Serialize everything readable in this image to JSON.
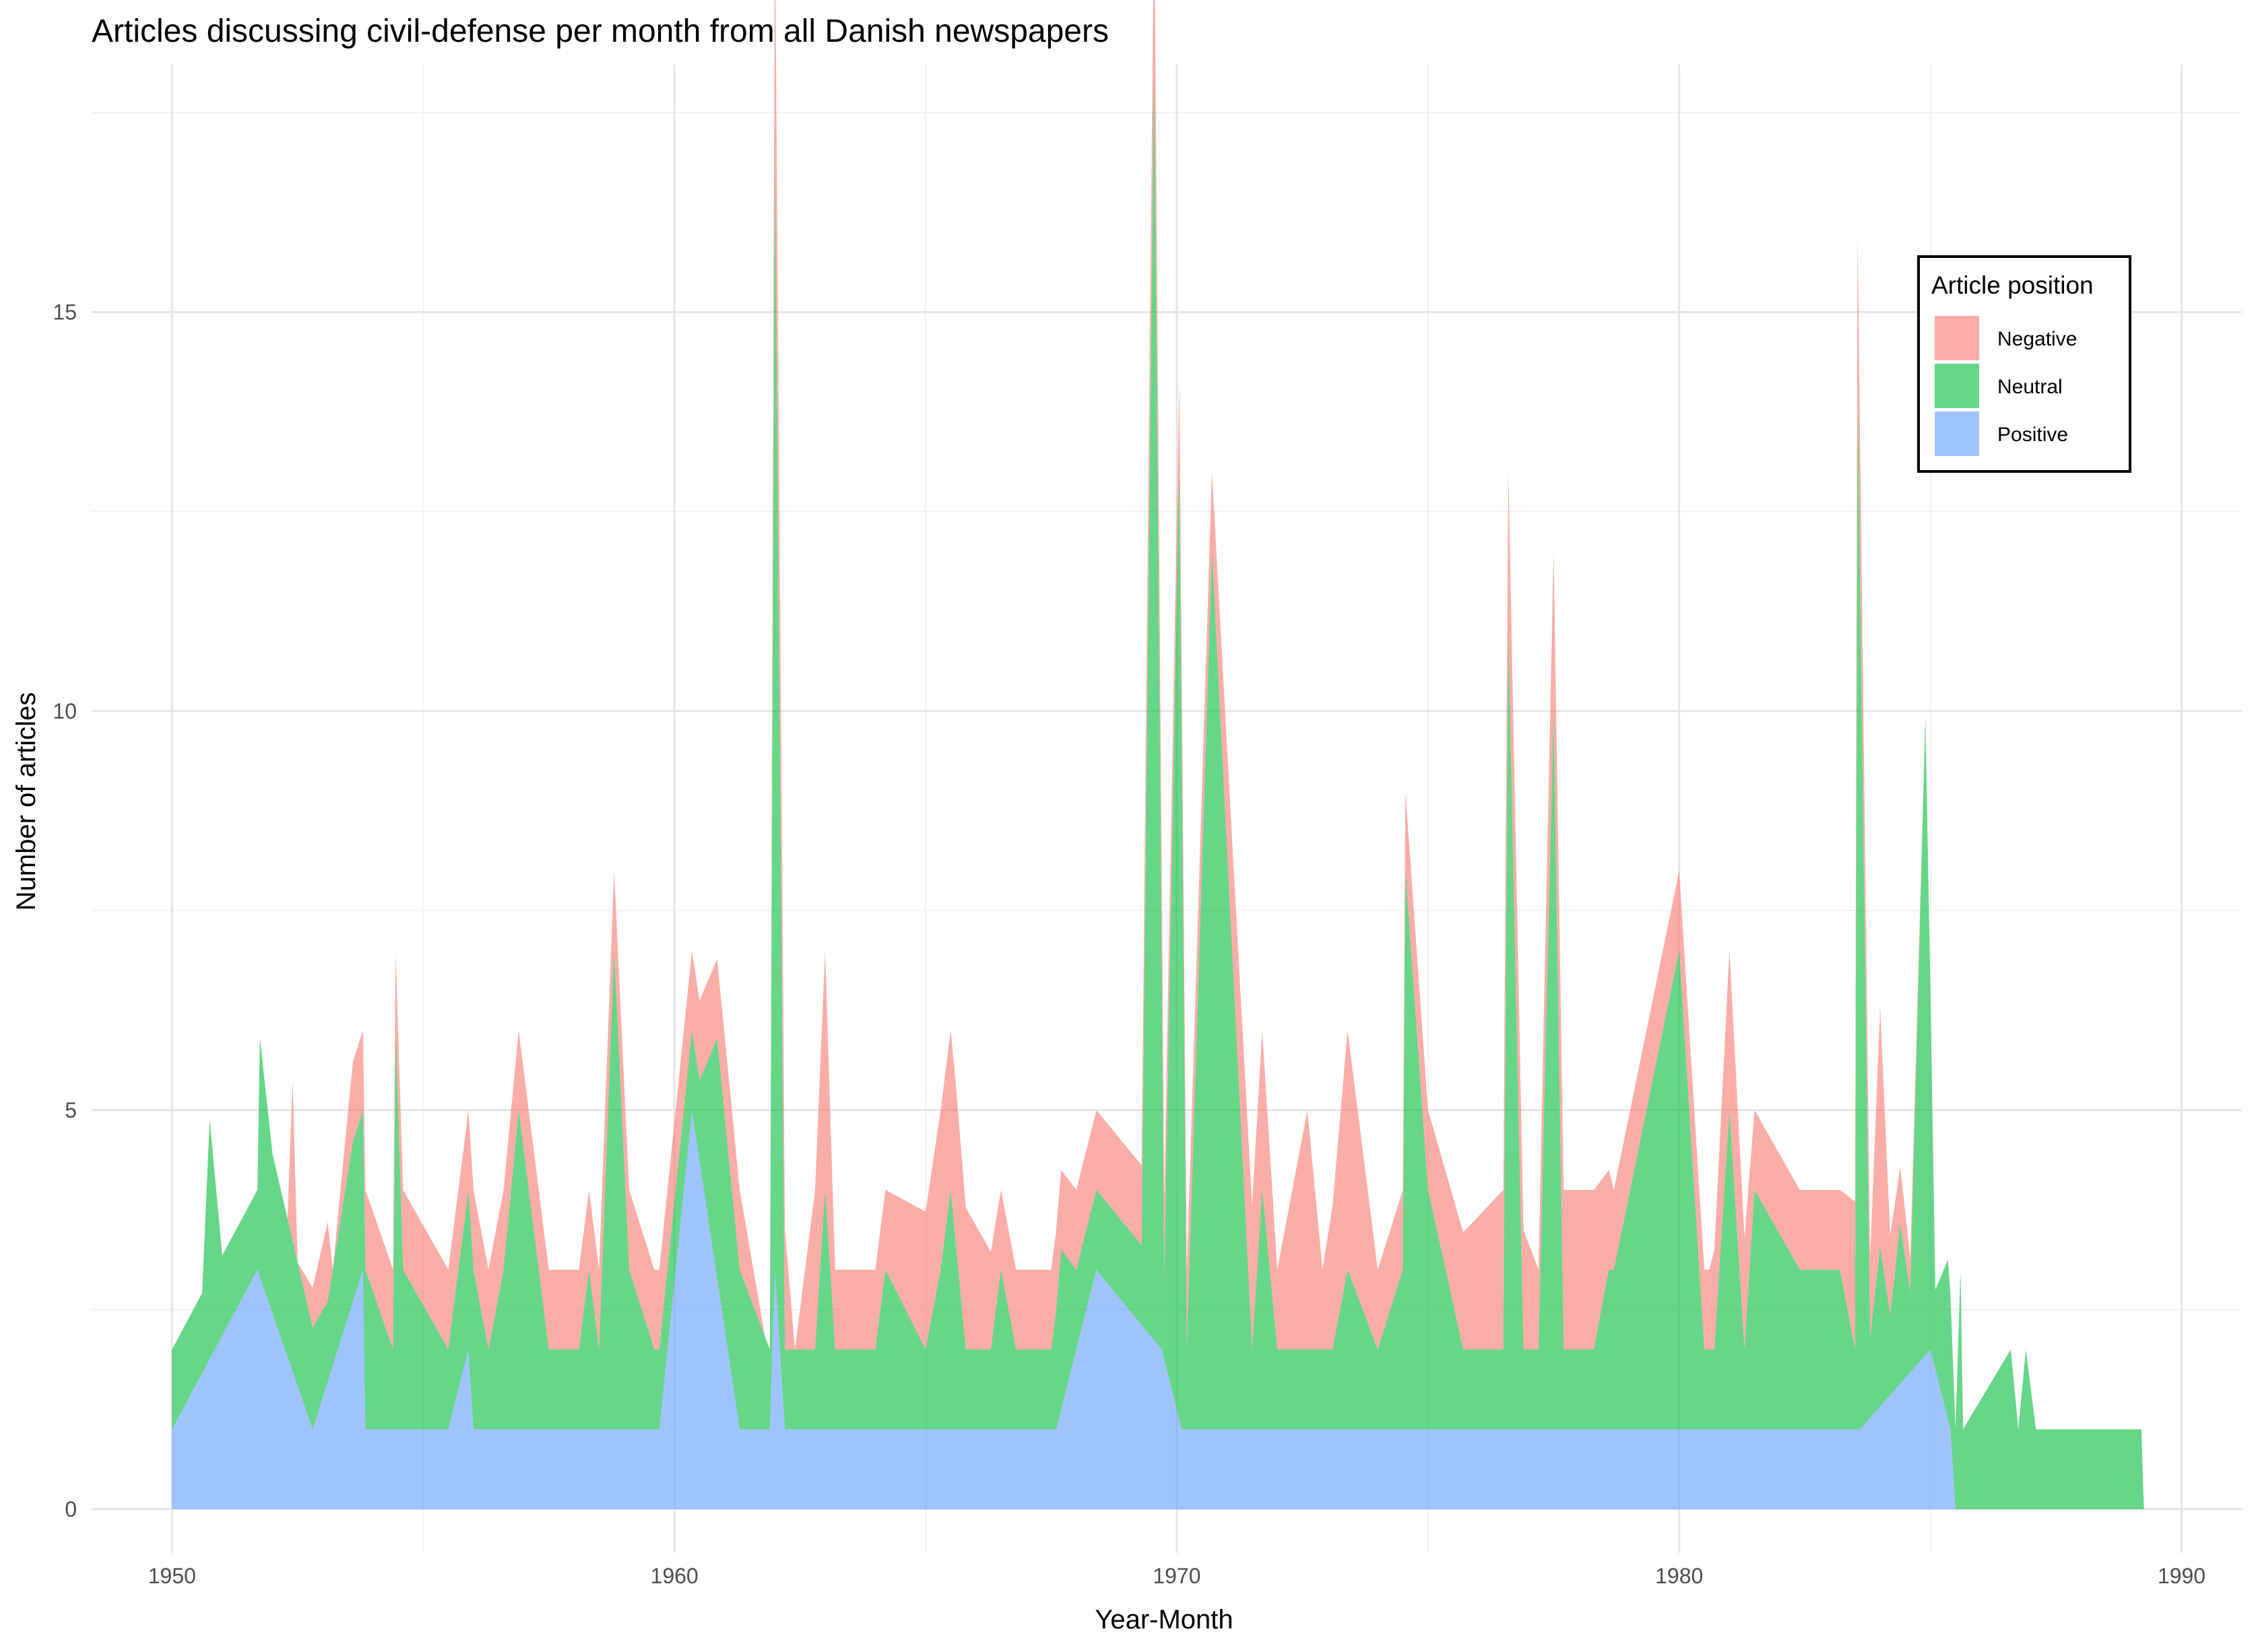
{
  "chart_data": {
    "type": "area",
    "stacked": true,
    "title": "Articles discussing civil-defense per month from all Danish newspapers",
    "xlabel": "Year-Month",
    "ylabel": "Number of articles",
    "xlim": [
      1948.4,
      1991.2
    ],
    "ylim": [
      -0.55,
      18.1
    ],
    "x_ticks": [
      1950,
      1960,
      1970,
      1980,
      1990
    ],
    "y_ticks": [
      0,
      5,
      10,
      15
    ],
    "grid": true,
    "legend": {
      "title": "Article position",
      "placement": "top-right",
      "entries": [
        "Negative",
        "Neutral",
        "Positive"
      ]
    },
    "colors": {
      "Negative": "#F8766D",
      "Neutral": "#00BA38",
      "Positive": "#619CFF"
    },
    "series": [
      {
        "name": "Positive",
        "points": [
          [
            1950.0,
            1
          ],
          [
            1951.7,
            3
          ],
          [
            1952.8,
            1
          ],
          [
            1953.8,
            3
          ],
          [
            1953.85,
            1
          ],
          [
            1955.5,
            1
          ],
          [
            1955.9,
            2
          ],
          [
            1956.0,
            1
          ],
          [
            1959.7,
            1
          ],
          [
            1960.35,
            5
          ],
          [
            1961.3,
            1
          ],
          [
            1961.9,
            1
          ],
          [
            1962.0,
            3
          ],
          [
            1962.2,
            1
          ],
          [
            1967.6,
            1
          ],
          [
            1968.4,
            3
          ],
          [
            1969.7,
            2
          ],
          [
            1970.1,
            1
          ],
          [
            1983.6,
            1
          ],
          [
            1985.0,
            2
          ],
          [
            1985.4,
            1
          ],
          [
            1985.5,
            0
          ]
        ]
      },
      {
        "name": "Neutral",
        "points": [
          [
            1950.0,
            1
          ],
          [
            1950.6,
            1
          ],
          [
            1950.75,
            3
          ],
          [
            1951.0,
            1
          ],
          [
            1951.7,
            1
          ],
          [
            1951.75,
            3
          ],
          [
            1952.0,
            2
          ],
          [
            1953.1,
            1
          ],
          [
            1953.6,
            2
          ],
          [
            1953.85,
            2
          ],
          [
            1954.4,
            1
          ],
          [
            1954.45,
            5
          ],
          [
            1954.6,
            2
          ],
          [
            1955.5,
            1
          ],
          [
            1955.9,
            2
          ],
          [
            1956.0,
            2
          ],
          [
            1956.3,
            1
          ],
          [
            1956.6,
            2
          ],
          [
            1956.9,
            4
          ],
          [
            1957.5,
            1
          ],
          [
            1958.1,
            1
          ],
          [
            1958.3,
            2
          ],
          [
            1958.5,
            1
          ],
          [
            1958.8,
            6
          ],
          [
            1959.1,
            2
          ],
          [
            1959.6,
            1
          ],
          [
            1960.2,
            1
          ],
          [
            1960.5,
            1
          ],
          [
            1960.85,
            3
          ],
          [
            1961.3,
            2
          ],
          [
            1961.9,
            1
          ],
          [
            1962.0,
            14
          ],
          [
            1962.2,
            1
          ],
          [
            1962.8,
            1
          ],
          [
            1963.0,
            3
          ],
          [
            1963.2,
            1
          ],
          [
            1964.0,
            1
          ],
          [
            1964.2,
            2
          ],
          [
            1965.0,
            1
          ],
          [
            1965.3,
            2
          ],
          [
            1965.5,
            3
          ],
          [
            1965.8,
            1
          ],
          [
            1966.3,
            1
          ],
          [
            1966.5,
            2
          ],
          [
            1966.8,
            1
          ],
          [
            1967.5,
            1
          ],
          [
            1967.7,
            2
          ],
          [
            1968.0,
            1
          ],
          [
            1968.2,
            1
          ],
          [
            1968.5,
            1
          ],
          [
            1969.3,
            1
          ],
          [
            1969.55,
            16
          ],
          [
            1969.75,
            1
          ],
          [
            1970.05,
            12
          ],
          [
            1970.2,
            1
          ],
          [
            1970.7,
            11
          ],
          [
            1971.5,
            1
          ],
          [
            1971.7,
            3
          ],
          [
            1972.0,
            1
          ],
          [
            1972.6,
            1
          ],
          [
            1972.9,
            1
          ],
          [
            1973.1,
            1
          ],
          [
            1973.4,
            2
          ],
          [
            1974.0,
            1
          ],
          [
            1974.5,
            2
          ],
          [
            1974.55,
            7
          ],
          [
            1975.0,
            3
          ],
          [
            1975.7,
            1
          ],
          [
            1976.5,
            1
          ],
          [
            1976.6,
            10
          ],
          [
            1976.9,
            1
          ],
          [
            1977.2,
            1
          ],
          [
            1977.5,
            9
          ],
          [
            1977.7,
            1
          ],
          [
            1978.0,
            1
          ],
          [
            1978.3,
            1
          ],
          [
            1978.6,
            2
          ],
          [
            1978.7,
            2
          ],
          [
            1980.0,
            6
          ],
          [
            1980.5,
            1
          ],
          [
            1980.7,
            1
          ],
          [
            1981.0,
            4
          ],
          [
            1981.3,
            1
          ],
          [
            1981.5,
            3
          ],
          [
            1982.4,
            2
          ],
          [
            1983.2,
            2
          ],
          [
            1983.5,
            1
          ],
          [
            1983.55,
            13
          ],
          [
            1983.8,
            1
          ],
          [
            1984.0,
            2
          ],
          [
            1984.2,
            1
          ],
          [
            1984.4,
            2
          ],
          [
            1984.6,
            1
          ],
          [
            1984.9,
            8
          ],
          [
            1985.1,
            1
          ],
          [
            1985.35,
            2
          ],
          [
            1985.5,
            1
          ],
          [
            1985.6,
            3
          ],
          [
            1985.65,
            1
          ],
          [
            1986.6,
            2
          ],
          [
            1986.75,
            1
          ],
          [
            1986.9,
            2
          ],
          [
            1987.1,
            1
          ],
          [
            1989.2,
            1
          ],
          [
            1989.25,
            0
          ]
        ]
      },
      {
        "name": "Negative",
        "points": [
          [
            1950.0,
            0
          ],
          [
            1952.3,
            0
          ],
          [
            1952.4,
            2
          ],
          [
            1952.5,
            0
          ],
          [
            1953.1,
            1
          ],
          [
            1953.2,
            0
          ],
          [
            1953.6,
            1
          ],
          [
            1953.8,
            1
          ],
          [
            1954.2,
            1
          ],
          [
            1954.5,
            1
          ],
          [
            1954.6,
            1
          ],
          [
            1955.5,
            1
          ],
          [
            1956.0,
            1
          ],
          [
            1956.4,
            1
          ],
          [
            1956.9,
            1
          ],
          [
            1957.2,
            1
          ],
          [
            1957.6,
            1
          ],
          [
            1958.2,
            1
          ],
          [
            1958.5,
            1
          ],
          [
            1958.8,
            1
          ],
          [
            1959.0,
            1
          ],
          [
            1959.6,
            1
          ],
          [
            1960.2,
            1
          ],
          [
            1960.5,
            1
          ],
          [
            1960.85,
            1
          ],
          [
            1961.3,
            1
          ],
          [
            1961.8,
            0
          ],
          [
            1961.9,
            0
          ],
          [
            1962.0,
            3
          ],
          [
            1962.4,
            0
          ],
          [
            1962.8,
            2
          ],
          [
            1963.0,
            3
          ],
          [
            1963.2,
            1
          ],
          [
            1964.2,
            1
          ],
          [
            1965.3,
            2
          ],
          [
            1965.6,
            2
          ],
          [
            1966.5,
            1
          ],
          [
            1967.5,
            1
          ],
          [
            1967.8,
            1
          ],
          [
            1968.3,
            1
          ],
          [
            1968.5,
            1
          ],
          [
            1969.3,
            1
          ],
          [
            1969.55,
            2
          ],
          [
            1969.75,
            1
          ],
          [
            1970.05,
            1
          ],
          [
            1970.3,
            1
          ],
          [
            1970.7,
            1
          ],
          [
            1971.7,
            2
          ],
          [
            1972.0,
            1
          ],
          [
            1972.6,
            3
          ],
          [
            1972.9,
            1
          ],
          [
            1973.4,
            3
          ],
          [
            1974.0,
            1
          ],
          [
            1974.55,
            1
          ],
          [
            1975.0,
            1
          ],
          [
            1976.5,
            2
          ],
          [
            1976.6,
            2
          ],
          [
            1977.2,
            1
          ],
          [
            1977.5,
            2
          ],
          [
            1978.3,
            2
          ],
          [
            1978.7,
            1
          ],
          [
            1980.0,
            1
          ],
          [
            1980.6,
            1
          ],
          [
            1981.0,
            2
          ],
          [
            1981.5,
            1
          ],
          [
            1982.4,
            1
          ],
          [
            1983.2,
            1
          ],
          [
            1983.55,
            2
          ],
          [
            1983.8,
            1
          ],
          [
            1984.0,
            3
          ],
          [
            1984.2,
            1
          ],
          [
            1984.9,
            0
          ],
          [
            1985.0,
            0
          ]
        ]
      }
    ]
  }
}
